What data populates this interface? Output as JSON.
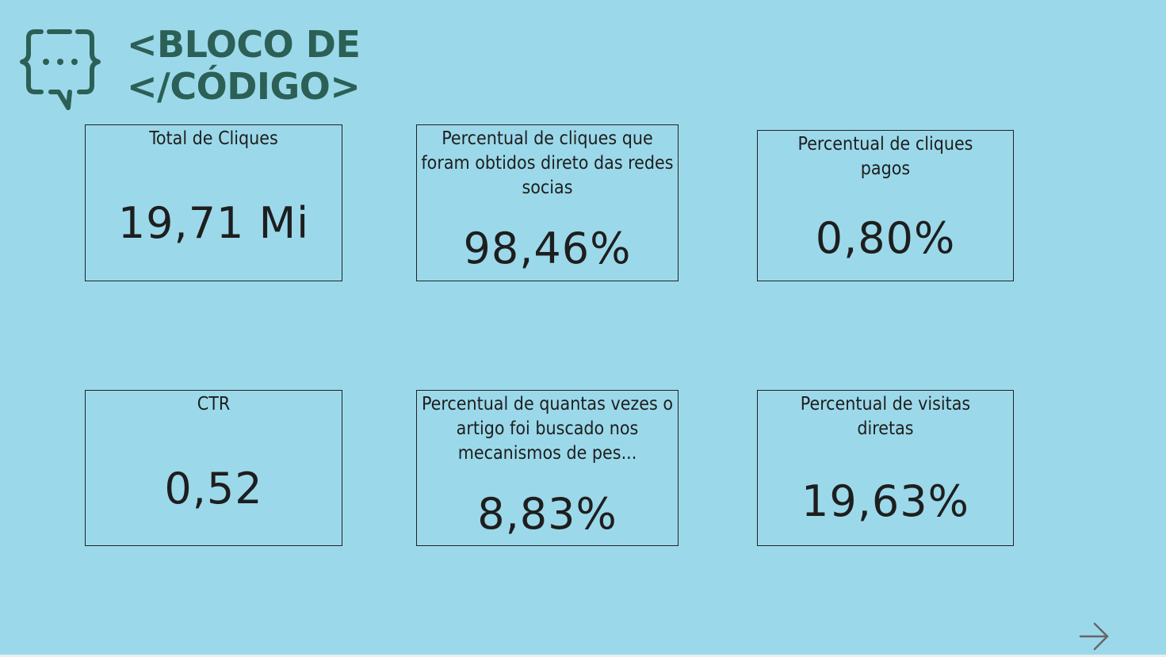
{
  "logo": {
    "line1": "<BLOCO DE",
    "line2": "</CÓDIGO>",
    "icon": "code-chat-bubble-icon",
    "color": "#2c6056"
  },
  "background_color": "#9bd9ea",
  "cards": [
    {
      "title": "Total de Cliques",
      "value": "19,71 Mi"
    },
    {
      "title": "Percentual de cliques que foram obtidos direto das redes socias",
      "value": "98,46%"
    },
    {
      "title": "Percentual de cliques pagos",
      "value": "0,80%"
    },
    {
      "title": "CTR",
      "value": "0,52"
    },
    {
      "title": "Percentual de quantas vezes o artigo foi buscado nos mecanismos de pes...",
      "value": "8,83%"
    },
    {
      "title": "Percentual de visitas diretas",
      "value": "19,63%"
    }
  ],
  "navigation": {
    "next_icon": "arrow-right-icon"
  }
}
